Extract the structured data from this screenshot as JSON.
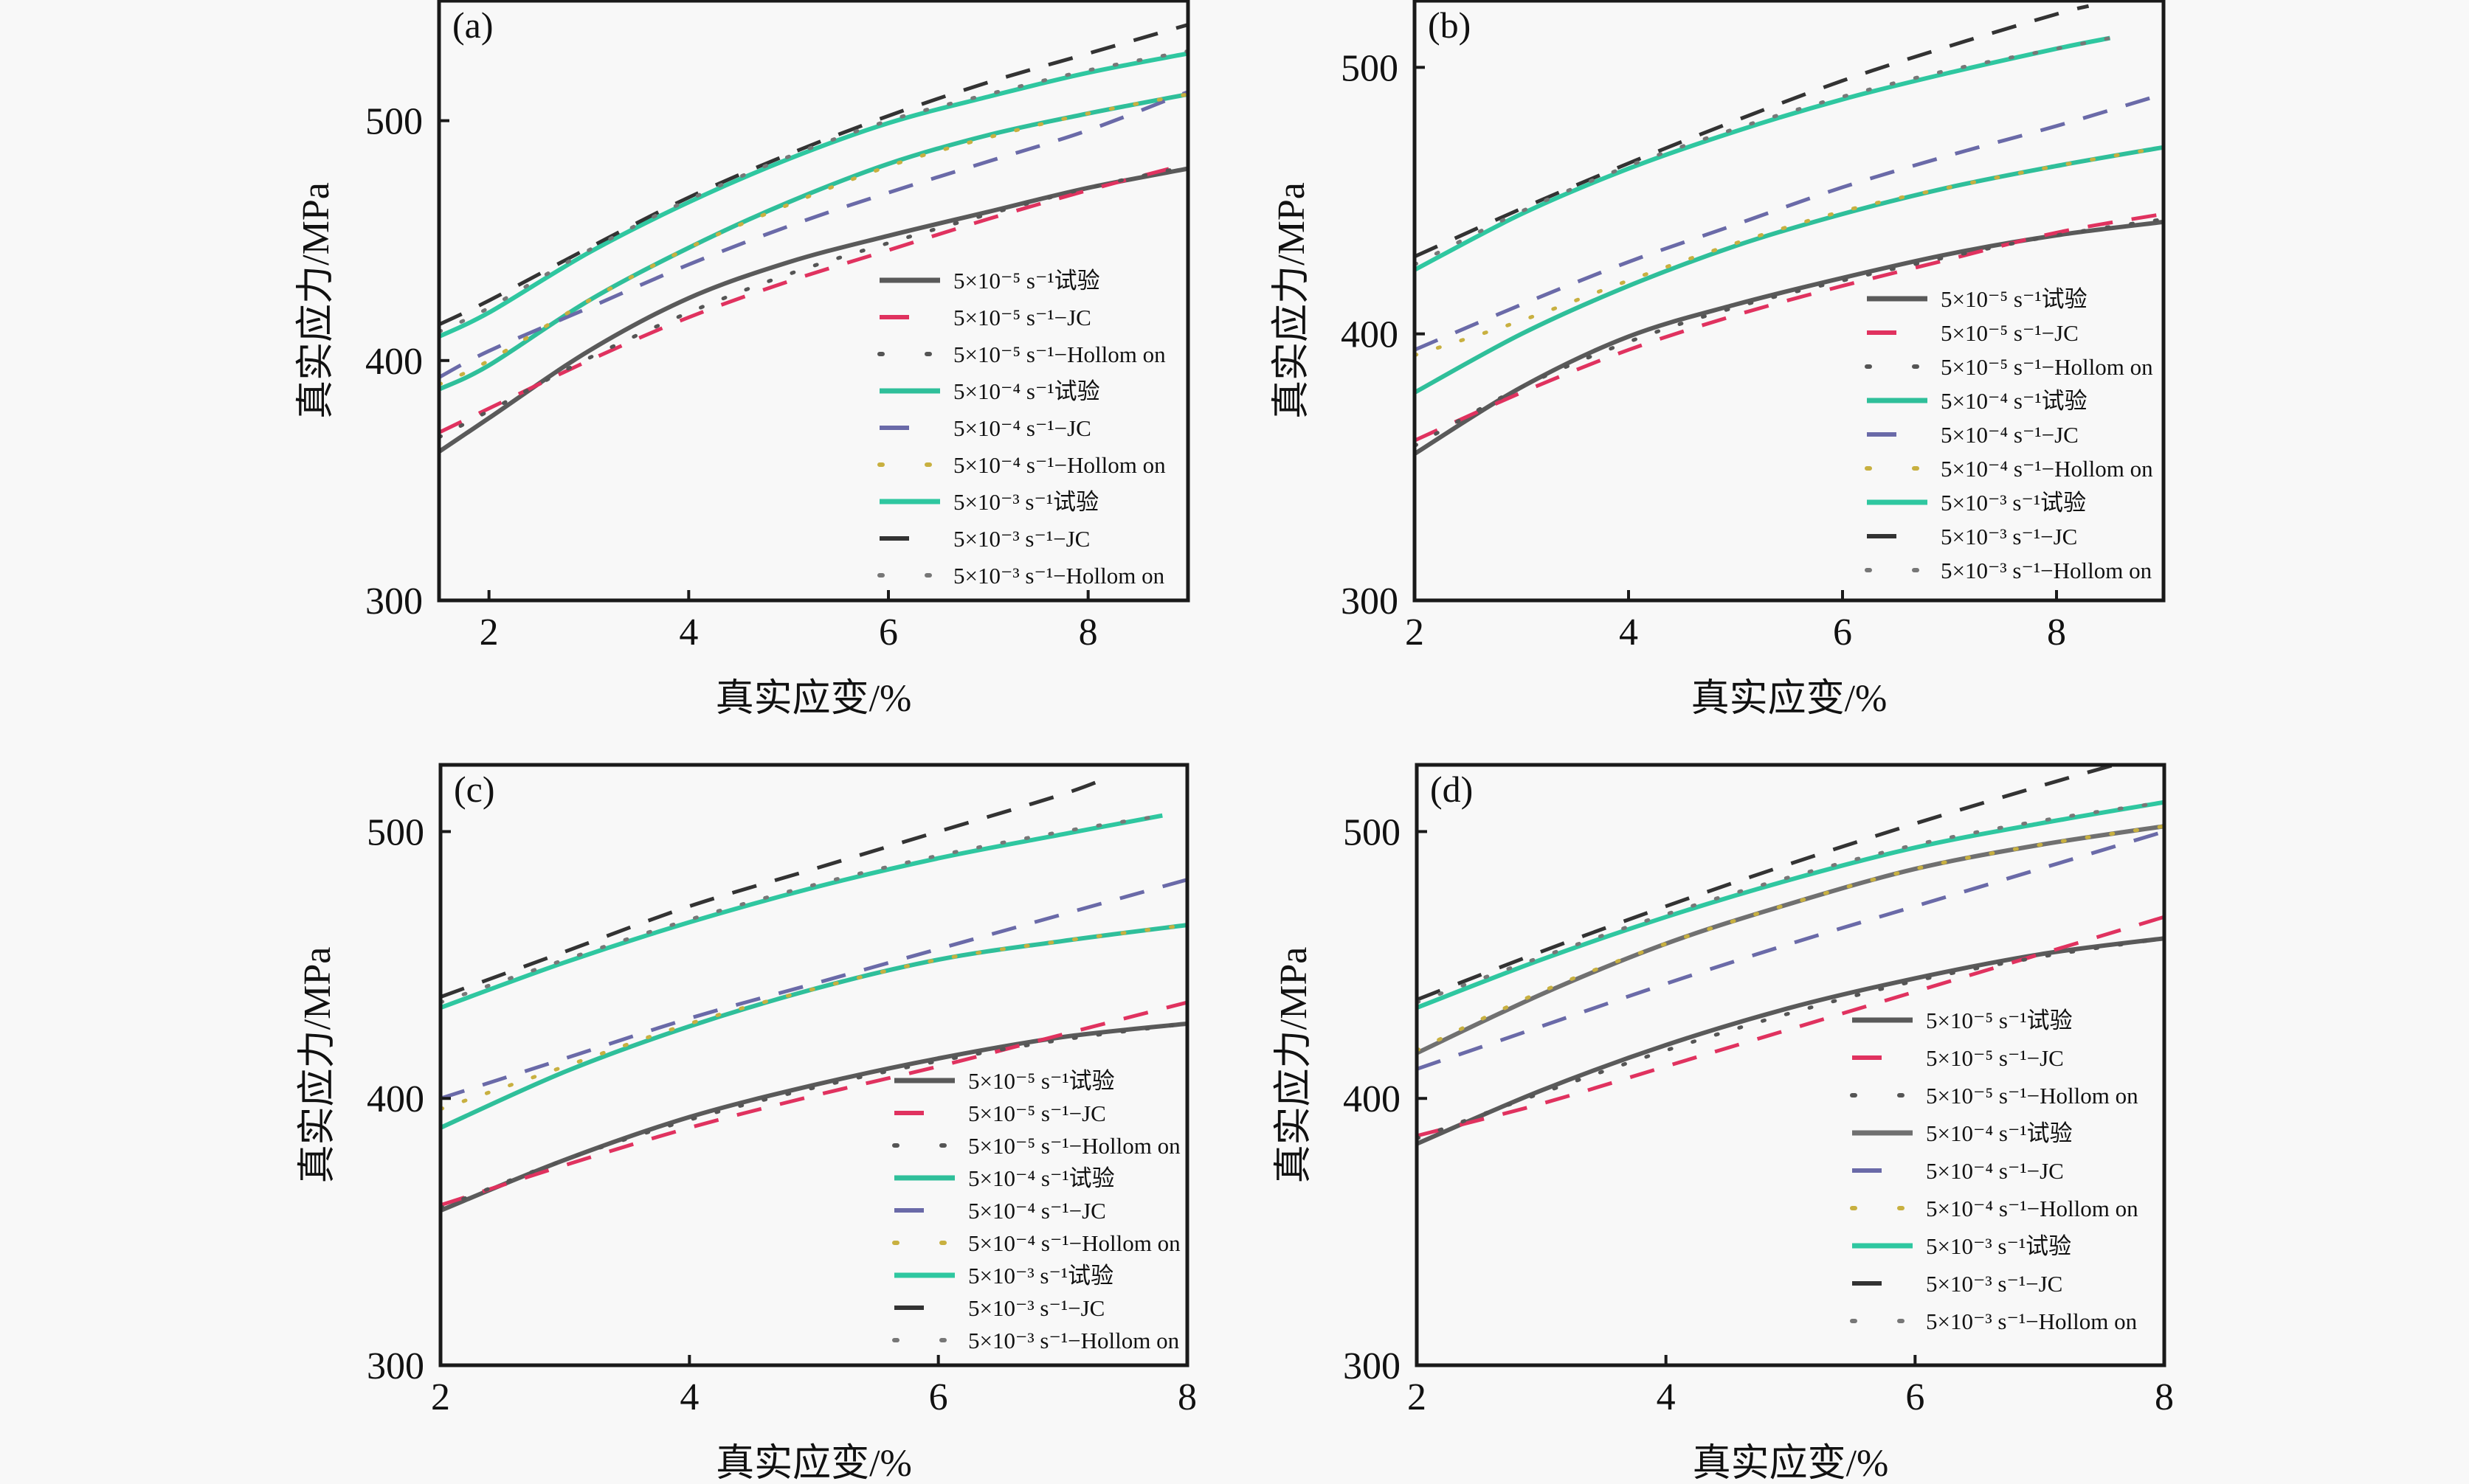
{
  "figure": {
    "ylabel": "真实应力/MPa",
    "xlabel": "真实应变/%"
  },
  "legend_labels": [
    "5×10⁻⁵ s⁻¹试验",
    "5×10⁻⁵ s⁻¹−JC",
    "5×10⁻⁵ s⁻¹−Hollom on",
    "5×10⁻⁴ s⁻¹试验",
    "5×10⁻⁴ s⁻¹−JC",
    "5×10⁻⁴ s⁻¹−Hollom on",
    "5×10⁻³ s⁻¹试验",
    "5×10⁻³ s⁻¹−JC",
    "5×10⁻³ s⁻¹−Hollom on"
  ],
  "colors": {
    "exp_5e-5": "#5a5a5a",
    "jc_5e-5": "#e0325f",
    "exp_5e-4_a": "#2fbf9a",
    "exp_5e-4_b": "#707070",
    "jc_5e-4": "#6a6aa8",
    "exp_5e-3": "#2fc7a0",
    "jc_5e-3": "#333333",
    "hollomon": "#888888",
    "axis": "#1a1a1a"
  },
  "chart_data": [
    {
      "panel": "(a)",
      "type": "line",
      "xlabel": "真实应变/%",
      "ylabel": "真实应力/MPa",
      "xlim": [
        1.5,
        9
      ],
      "ylim": [
        300,
        550
      ],
      "xticks": [
        2,
        4,
        6,
        8
      ],
      "yticks": [
        300,
        400,
        500
      ],
      "legend_position": "bottom-right",
      "series": [
        {
          "name": "5×10⁻⁵ s⁻¹试验",
          "style": "exp",
          "color": "#5a5a5a",
          "x": [
            1.5,
            2,
            3,
            4,
            5,
            6,
            7,
            8,
            9
          ],
          "y": [
            362,
            376,
            404,
            426,
            441,
            452,
            462,
            472,
            480
          ]
        },
        {
          "name": "5×10⁻⁵ s⁻¹−JC",
          "style": "jc",
          "color": "#e0325f",
          "x": [
            1.5,
            2,
            3,
            4,
            5,
            6,
            7,
            8,
            9
          ],
          "y": [
            370,
            380,
            400,
            418,
            433,
            446,
            459,
            471,
            482
          ]
        },
        {
          "name": "5×10⁻⁵ s⁻¹−Hollom on",
          "style": "hollomon",
          "color": "#555555",
          "x": [
            1.5,
            2,
            3,
            4,
            5,
            6,
            7,
            8,
            9
          ],
          "y": [
            368,
            379,
            401,
            420,
            436,
            449,
            461,
            472,
            481
          ]
        },
        {
          "name": "5×10⁻⁴ s⁻¹试验",
          "style": "exp",
          "color": "#2fbf9a",
          "x": [
            1.5,
            2,
            3,
            4,
            5,
            6,
            7,
            8,
            9
          ],
          "y": [
            388,
            398,
            425,
            447,
            466,
            482,
            494,
            503,
            511
          ]
        },
        {
          "name": "5×10⁻⁴ s⁻¹−JC",
          "style": "jc",
          "color": "#6a6aa8",
          "x": [
            1.5,
            2,
            3,
            4,
            5,
            6,
            7,
            8,
            9
          ],
          "y": [
            393,
            404,
            422,
            440,
            456,
            470,
            483,
            496,
            512
          ]
        },
        {
          "name": "5×10⁻⁴ s⁻¹−Hollom on",
          "style": "hollomon",
          "color": "#c8b040",
          "x": [
            1.5,
            2,
            3,
            4,
            5,
            6,
            7,
            8,
            9
          ],
          "y": [
            390,
            400,
            425,
            447,
            465,
            481,
            493,
            503,
            511
          ]
        },
        {
          "name": "5×10⁻³ s⁻¹试验",
          "style": "exp",
          "color": "#2fc7a0",
          "x": [
            1.5,
            2,
            3,
            4,
            5,
            6,
            7,
            8,
            9
          ],
          "y": [
            410,
            420,
            445,
            466,
            484,
            499,
            510,
            520,
            528
          ]
        },
        {
          "name": "5×10⁻³ s⁻¹−JC",
          "style": "jc",
          "color": "#333333",
          "x": [
            1.5,
            2,
            3,
            4,
            5,
            6,
            7,
            8,
            9
          ],
          "y": [
            415,
            425,
            447,
            468,
            486,
            502,
            516,
            528,
            540
          ]
        },
        {
          "name": "5×10⁻³ s⁻¹−Hollom on",
          "style": "hollomon",
          "color": "#777777",
          "x": [
            1.5,
            2,
            3,
            4,
            5,
            6,
            7,
            8,
            9
          ],
          "y": [
            412,
            422,
            446,
            467,
            485,
            500,
            511,
            521,
            529
          ]
        }
      ]
    },
    {
      "panel": "(b)",
      "type": "line",
      "xlabel": "真实应变/%",
      "ylabel": "真实应力/MPa",
      "xlim": [
        2,
        9
      ],
      "ylim": [
        300,
        525
      ],
      "xticks": [
        2,
        4,
        6,
        8
      ],
      "yticks": [
        300,
        400,
        500
      ],
      "legend_position": "bottom-right",
      "series": [
        {
          "name": "5×10⁻⁵ s⁻¹试验",
          "style": "exp",
          "color": "#5a5a5a",
          "x": [
            2,
            3,
            4,
            5,
            6,
            7,
            8,
            9
          ],
          "y": [
            355,
            380,
            399,
            411,
            421,
            430,
            437,
            442
          ]
        },
        {
          "name": "5×10⁻⁵ s⁻¹−JC",
          "style": "jc",
          "color": "#e0325f",
          "x": [
            2,
            3,
            4,
            5,
            6,
            7,
            8,
            9
          ],
          "y": [
            360,
            378,
            394,
            407,
            418,
            428,
            438,
            445
          ]
        },
        {
          "name": "5×10⁻⁵ s⁻¹−Hollom on",
          "style": "hollomon",
          "color": "#555555",
          "x": [
            2,
            3,
            4,
            5,
            6,
            7,
            8,
            9
          ],
          "y": [
            358,
            380,
            397,
            410,
            420,
            429,
            437,
            443
          ]
        },
        {
          "name": "5×10⁻⁴ s⁻¹试验",
          "style": "exp",
          "color": "#2fbf9a",
          "x": [
            2,
            3,
            4,
            5,
            6,
            7,
            8,
            9
          ],
          "y": [
            378,
            400,
            418,
            433,
            445,
            455,
            463,
            470
          ]
        },
        {
          "name": "5×10⁻⁴ s⁻¹−JC",
          "style": "jc",
          "color": "#6a6aa8",
          "x": [
            2,
            3,
            4,
            5,
            6,
            7,
            8,
            9
          ],
          "y": [
            394,
            411,
            427,
            441,
            455,
            467,
            478,
            490
          ]
        },
        {
          "name": "5×10⁻⁴ s⁻¹−Hollom on",
          "style": "hollomon",
          "color": "#c8b040",
          "x": [
            2,
            3,
            4,
            5,
            6,
            7,
            8,
            9
          ],
          "y": [
            392,
            405,
            420,
            434,
            446,
            455,
            463,
            470
          ]
        },
        {
          "name": "5×10⁻³ s⁻¹试验",
          "style": "exp",
          "color": "#2fc7a0",
          "x": [
            2,
            3,
            4,
            5,
            6,
            7,
            8,
            8.5
          ],
          "y": [
            424,
            445,
            462,
            476,
            488,
            498,
            507,
            511
          ]
        },
        {
          "name": "5×10⁻³ s⁻¹−JC",
          "style": "jc",
          "color": "#333333",
          "x": [
            2,
            3,
            4,
            5,
            6,
            7,
            8,
            8.3
          ],
          "y": [
            429,
            447,
            464,
            480,
            495,
            508,
            520,
            523
          ]
        },
        {
          "name": "5×10⁻³ s⁻¹−Hollom on",
          "style": "hollomon",
          "color": "#777777",
          "x": [
            2,
            3,
            4,
            5,
            6,
            7,
            8,
            8.5
          ],
          "y": [
            426,
            446,
            463,
            477,
            489,
            499,
            507,
            511
          ]
        }
      ]
    },
    {
      "panel": "(c)",
      "type": "line",
      "xlabel": "真实应变/%",
      "ylabel": "真实应力/MPa",
      "xlim": [
        2,
        8
      ],
      "ylim": [
        300,
        525
      ],
      "xticks": [
        2,
        4,
        6,
        8
      ],
      "yticks": [
        300,
        400,
        500
      ],
      "legend_position": "bottom-right",
      "series": [
        {
          "name": "5×10⁻⁵ s⁻¹试验",
          "style": "exp",
          "color": "#5a5a5a",
          "x": [
            2,
            3,
            4,
            5,
            6,
            7,
            8
          ],
          "y": [
            358,
            377,
            393,
            405,
            415,
            423,
            428
          ]
        },
        {
          "name": "5×10⁻⁵ s⁻¹−JC",
          "style": "jc",
          "color": "#e0325f",
          "x": [
            2,
            3,
            4,
            5,
            6,
            7,
            8
          ],
          "y": [
            360,
            375,
            389,
            401,
            412,
            424,
            436
          ]
        },
        {
          "name": "5×10⁻⁵ s⁻¹−Hollom on",
          "style": "hollomon",
          "color": "#555555",
          "x": [
            2,
            3,
            4,
            5,
            6,
            7,
            8
          ],
          "y": [
            359,
            377,
            392,
            404,
            414,
            422,
            428
          ]
        },
        {
          "name": "5×10⁻⁴ s⁻¹试验",
          "style": "exp",
          "color": "#2fbf9a",
          "x": [
            2,
            3,
            4,
            5,
            6,
            7,
            8
          ],
          "y": [
            389,
            410,
            427,
            441,
            452,
            459,
            465
          ]
        },
        {
          "name": "5×10⁻⁴ s⁻¹−JC",
          "style": "jc",
          "color": "#6a6aa8",
          "x": [
            2,
            3,
            4,
            5,
            6,
            7,
            8
          ],
          "y": [
            400,
            415,
            430,
            443,
            456,
            469,
            482
          ]
        },
        {
          "name": "5×10⁻⁴ s⁻¹−Hollom on",
          "style": "hollomon",
          "color": "#c8b040",
          "x": [
            2,
            3,
            4,
            5,
            6,
            7,
            8
          ],
          "y": [
            396,
            412,
            428,
            441,
            452,
            459,
            465
          ]
        },
        {
          "name": "5×10⁻³ s⁻¹试验",
          "style": "exp",
          "color": "#2fc7a0",
          "x": [
            2,
            3,
            4,
            5,
            6,
            7,
            7.8
          ],
          "y": [
            434,
            451,
            466,
            479,
            490,
            499,
            506
          ]
        },
        {
          "name": "5×10⁻³ s⁻¹−JC",
          "style": "jc",
          "color": "#333333",
          "x": [
            2,
            3,
            4,
            5,
            6,
            7,
            7.4
          ],
          "y": [
            438,
            455,
            472,
            486,
            500,
            514,
            521
          ]
        },
        {
          "name": "5×10⁻³ s⁻¹−Hollom on",
          "style": "hollomon",
          "color": "#777777",
          "x": [
            2,
            3,
            4,
            5,
            6,
            7,
            7.8
          ],
          "y": [
            436,
            452,
            467,
            480,
            491,
            500,
            506
          ]
        }
      ]
    },
    {
      "panel": "(d)",
      "type": "line",
      "xlabel": "真实应变/%",
      "ylabel": "真实应力/MPa",
      "xlim": [
        2,
        8
      ],
      "ylim": [
        300,
        525
      ],
      "xticks": [
        2,
        4,
        6,
        8
      ],
      "yticks": [
        300,
        400,
        500
      ],
      "legend_position": "bottom-right",
      "series": [
        {
          "name": "5×10⁻⁵ s⁻¹试验",
          "style": "exp",
          "color": "#5a5a5a",
          "x": [
            2,
            3,
            4,
            5,
            6,
            7,
            8
          ],
          "y": [
            383,
            403,
            420,
            434,
            445,
            454,
            460
          ]
        },
        {
          "name": "5×10⁻⁵ s⁻¹−JC",
          "style": "jc",
          "color": "#e0325f",
          "x": [
            2,
            3,
            4,
            5,
            6,
            7,
            8
          ],
          "y": [
            386,
            398,
            412,
            426,
            440,
            454,
            468
          ]
        },
        {
          "name": "5×10⁻⁵ s⁻¹−Hollom on",
          "style": "hollomon",
          "color": "#555555",
          "x": [
            2,
            3,
            4,
            5,
            6,
            7,
            8
          ],
          "y": [
            385,
            402,
            418,
            432,
            444,
            453,
            460
          ]
        },
        {
          "name": "5×10⁻⁴ s⁻¹试验",
          "style": "exp",
          "color": "#707070",
          "x": [
            2,
            3,
            4,
            5,
            6,
            7,
            8
          ],
          "y": [
            417,
            439,
            458,
            473,
            486,
            495,
            502
          ]
        },
        {
          "name": "5×10⁻⁴ s⁻¹−JC",
          "style": "jc",
          "color": "#6a6aa8",
          "x": [
            2,
            3,
            4,
            5,
            6,
            7,
            8
          ],
          "y": [
            411,
            427,
            443,
            458,
            472,
            486,
            500
          ]
        },
        {
          "name": "5×10⁻⁴ s⁻¹−Hollom on",
          "style": "hollomon",
          "color": "#c8b040",
          "x": [
            2,
            3,
            4,
            5,
            6,
            7,
            8
          ],
          "y": [
            418,
            440,
            458,
            473,
            486,
            495,
            502
          ]
        },
        {
          "name": "5×10⁻³ s⁻¹试验",
          "style": "exp",
          "color": "#2fc7a0",
          "x": [
            2,
            3,
            4,
            5,
            6,
            7,
            8
          ],
          "y": [
            434,
            452,
            468,
            482,
            494,
            503,
            511
          ]
        },
        {
          "name": "5×10⁻³ s⁻¹−JC",
          "style": "jc",
          "color": "#333333",
          "x": [
            2,
            3,
            4,
            5,
            6,
            7,
            7.6
          ],
          "y": [
            437,
            455,
            472,
            488,
            503,
            517,
            525
          ]
        },
        {
          "name": "5×10⁻³ s⁻¹−Hollom on",
          "style": "hollomon",
          "color": "#777777",
          "x": [
            2,
            3,
            4,
            5,
            6,
            7,
            8
          ],
          "y": [
            436,
            453,
            469,
            483,
            495,
            504,
            511
          ]
        }
      ]
    }
  ]
}
